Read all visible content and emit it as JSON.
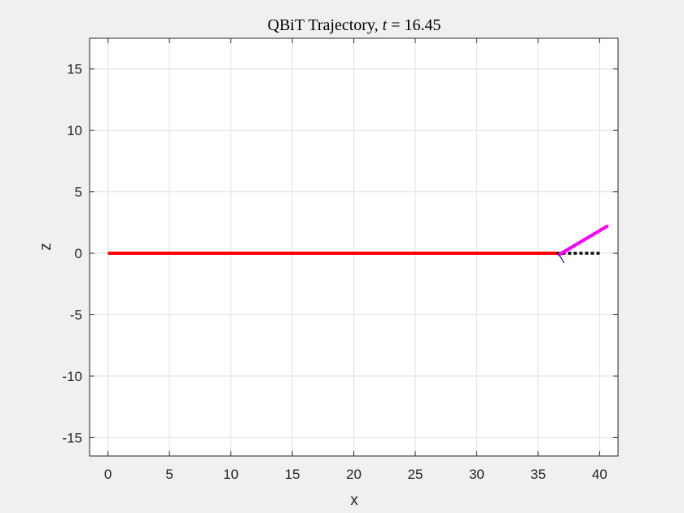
{
  "chart_data": {
    "type": "line",
    "title": {
      "prefix": "QBiT Trajectory, ",
      "variable": "t",
      "equals": " = ",
      "value": "16.45"
    },
    "xlabel": "x",
    "ylabel": "z",
    "xlim": [
      -1.5,
      41.5
    ],
    "ylim": [
      -16.5,
      17.5
    ],
    "xticks": [
      0,
      5,
      10,
      15,
      20,
      25,
      30,
      35,
      40
    ],
    "yticks": [
      -15,
      -10,
      -5,
      0,
      5,
      10,
      15
    ],
    "xtick_labels": [
      "0",
      "5",
      "10",
      "15",
      "20",
      "25",
      "30",
      "35",
      "40"
    ],
    "ytick_labels": [
      "-15",
      "-10",
      "-5",
      "0",
      "5",
      "10",
      "15"
    ],
    "grid": true,
    "series": [
      {
        "role": "trajectory",
        "color": "#ff0000",
        "style": "solid",
        "x": [
          0.1,
          36.5
        ],
        "y": [
          0,
          0
        ]
      },
      {
        "role": "reference",
        "color": "#000000",
        "style": "dotted",
        "x": [
          36.5,
          40.0
        ],
        "y": [
          0,
          0
        ]
      },
      {
        "role": "body",
        "color": "#ff00ff",
        "style": "solid",
        "x": [
          36.7,
          40.6
        ],
        "y": [
          -0.1,
          2.2
        ]
      },
      {
        "role": "leg",
        "color": "#00008b",
        "style": "thin",
        "x": [
          36.6,
          37.1
        ],
        "y": [
          0.05,
          -0.75
        ]
      }
    ]
  }
}
